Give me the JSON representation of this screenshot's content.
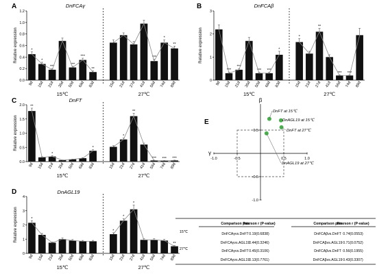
{
  "chart_data": [
    {
      "type": "bar",
      "panel": "A",
      "title": "DnFCAγ",
      "ylabel": "Relative expression",
      "ylim": [
        0,
        1.2
      ],
      "yticks": [
        0.0,
        0.2,
        0.4,
        0.6,
        0.8,
        1.0,
        1.2
      ],
      "ytick_labels": [
        "0.0",
        "0.2",
        "0.4",
        "0.6",
        "0.8",
        "1.0",
        "1.2"
      ],
      "groups": [
        {
          "label": "15℃",
          "categories": [
            "9d",
            "15d",
            "21d",
            "35d",
            "50d",
            "68d",
            "83d"
          ],
          "values": [
            0.45,
            0.28,
            0.18,
            0.68,
            0.22,
            0.35,
            0.14
          ],
          "errors": [
            0.04,
            0.03,
            0.02,
            0.05,
            0.02,
            0.03,
            0.02
          ],
          "sig": [
            "*",
            "*",
            "***",
            "",
            "***",
            "***",
            "**"
          ]
        },
        {
          "label": "27℃",
          "categories": [
            "15d",
            "21d",
            "27d",
            "41d",
            "56d",
            "74d",
            "89d"
          ],
          "values": [
            0.65,
            0.78,
            0.62,
            0.98,
            0.33,
            0.65,
            0.55
          ],
          "errors": [
            0.05,
            0.04,
            0.05,
            0.06,
            0.03,
            0.05,
            0.04
          ],
          "sig": [
            "",
            "",
            "",
            "",
            "***",
            "*",
            "**"
          ]
        }
      ]
    },
    {
      "type": "bar",
      "panel": "B",
      "title": "DnFCAβ",
      "ylabel": "Relative expression",
      "ylim": [
        0,
        3
      ],
      "yticks": [
        0,
        1,
        2,
        3
      ],
      "ytick_labels": [
        "0",
        "1",
        "2",
        "3"
      ],
      "groups": [
        {
          "label": "15℃",
          "categories": [
            "9d",
            "15d",
            "21d",
            "35d",
            "50d",
            "68d",
            "83d"
          ],
          "values": [
            2.2,
            0.3,
            0.45,
            1.7,
            0.3,
            0.3,
            1.1
          ],
          "errors": [
            0.2,
            0.05,
            0.05,
            0.15,
            0.04,
            0.04,
            0.15
          ],
          "sig": [
            "",
            "***",
            "***",
            "",
            "***",
            "***",
            "*"
          ]
        },
        {
          "label": "27℃",
          "categories": [
            "15d",
            "21d",
            "27d",
            "41d",
            "56d",
            "74d",
            "89d"
          ],
          "values": [
            1.65,
            1.15,
            2.1,
            1.0,
            0.2,
            0.2,
            1.95
          ],
          "errors": [
            0.15,
            0.1,
            0.15,
            0.1,
            0.03,
            0.03,
            0.3
          ],
          "sig": [
            "*",
            "",
            "**",
            "",
            "***",
            "***",
            ""
          ]
        }
      ]
    },
    {
      "type": "bar",
      "panel": "C",
      "title": "DnFT",
      "ylabel": "Relative expression",
      "ylim": [
        0,
        2.0
      ],
      "yticks": [
        0.0,
        0.5,
        1.0,
        1.5,
        2.0
      ],
      "ytick_labels": [
        "0.0",
        "0.5",
        "1.0",
        "1.5",
        "2.0"
      ],
      "groups": [
        {
          "label": "15℃",
          "categories": [
            "9d",
            "15d",
            "21d",
            "35d",
            "50d",
            "68d",
            "83d"
          ],
          "values": [
            1.78,
            0.15,
            0.18,
            0.05,
            0.08,
            0.12,
            0.38
          ],
          "errors": [
            0.1,
            0.02,
            0.03,
            0.01,
            0.01,
            0.02,
            0.04
          ],
          "sig": [
            "**",
            "",
            "*",
            "",
            "",
            "",
            "*"
          ]
        },
        {
          "label": "27℃",
          "categories": [
            "15d",
            "21d",
            "27d",
            "41d",
            "56d",
            "74d",
            "89d"
          ],
          "values": [
            0.52,
            0.78,
            1.6,
            0.6,
            0.04,
            0.03,
            0.04
          ],
          "errors": [
            0.04,
            0.05,
            0.1,
            0.05,
            0.01,
            0.01,
            0.01
          ],
          "sig": [
            "",
            "*",
            "**",
            "",
            "***",
            "***",
            "***"
          ]
        }
      ]
    },
    {
      "type": "bar",
      "panel": "D",
      "title": "DnAGL19",
      "ylabel": "Relative expression",
      "ylim": [
        0,
        4
      ],
      "yticks": [
        0,
        1,
        2,
        3,
        4
      ],
      "ytick_labels": [
        "0",
        "1",
        "2",
        "3",
        "4"
      ],
      "groups": [
        {
          "label": "15℃",
          "categories": [
            "9d",
            "15d",
            "21d",
            "35d",
            "50d",
            "68d",
            "83d"
          ],
          "values": [
            2.15,
            1.3,
            0.75,
            1.0,
            0.9,
            0.85,
            0.85
          ],
          "errors": [
            0.15,
            0.1,
            0.05,
            0.08,
            0.07,
            0.06,
            0.06
          ],
          "sig": [
            "*",
            "",
            "",
            "",
            "",
            "",
            ""
          ]
        },
        {
          "label": "27℃",
          "categories": [
            "15d",
            "21d",
            "27d",
            "41d",
            "56d",
            "74d",
            "89d"
          ],
          "values": [
            1.35,
            2.3,
            3.1,
            0.95,
            0.95,
            0.9,
            0.5
          ],
          "errors": [
            0.1,
            0.15,
            0.3,
            0.08,
            0.08,
            0.08,
            0.05
          ],
          "sig": [
            "*",
            "*",
            "*",
            "",
            "",
            "",
            "**"
          ]
        }
      ]
    },
    {
      "type": "scatter",
      "panel": "E",
      "xlabel": "γ",
      "ylabel": "β",
      "xlim": [
        -1.0,
        1.0
      ],
      "ylim": [
        -1.0,
        1.0
      ],
      "xticks": [
        -1.0,
        -0.5,
        0.5,
        1.0
      ],
      "xtick_labels": [
        "-1.0",
        "-0.5",
        "0.5",
        "1.0"
      ],
      "yticks": [
        0.5,
        -0.5,
        -1.0
      ],
      "ytick_labels": [
        "0.5",
        "-0.5",
        "-1.0"
      ],
      "box": [
        -0.5,
        0.5
      ],
      "point_color": "#4caf50",
      "points": [
        {
          "label": "DnFT at 15℃",
          "x": 0.19,
          "y": 0.74
        },
        {
          "label": "DnAGL19 at 15℃",
          "x": 0.44,
          "y": 0.71
        },
        {
          "label": "DnFT at 27℃",
          "x": 0.45,
          "y": 0.56
        },
        {
          "label": "DnAGL19 at 27℃",
          "x": 0.13,
          "y": 0.43
        }
      ]
    },
    {
      "type": "table",
      "panel": "E",
      "columns": [
        "Comparison pair",
        "Pearson r (P-value)",
        "Comparison pair",
        "Pearson r (P-value)"
      ],
      "rows": [
        {
          "temp": "15℃",
          "pair1": "DnFCAγvs.DnFT",
          "r1": "0.19(0.6838)",
          "pair2": "DnFCAβvs.DnFT",
          "r2": "0.74(0.0553)"
        },
        {
          "temp": "",
          "pair1": "DnFCAγvs.AGL19",
          "r1": "0.44(0.3246)",
          "pair2": "DnFCAβvs.AGL19",
          "r2": "0.71(0.0752)"
        },
        {
          "temp": "27℃",
          "pair1": "DnFCAγvs.DnFT",
          "r1": "0.45(0.3106)",
          "pair2": "DnFCAβvs.DnFT",
          "r2": "0.56(0.1955)"
        },
        {
          "temp": "",
          "pair1": "DnFCAγvs.AGL19",
          "r1": "0.13(0.7761)",
          "pair2": "DnFCAβvs.AGL19",
          "r2": "0.43(0.3307)"
        }
      ]
    }
  ]
}
